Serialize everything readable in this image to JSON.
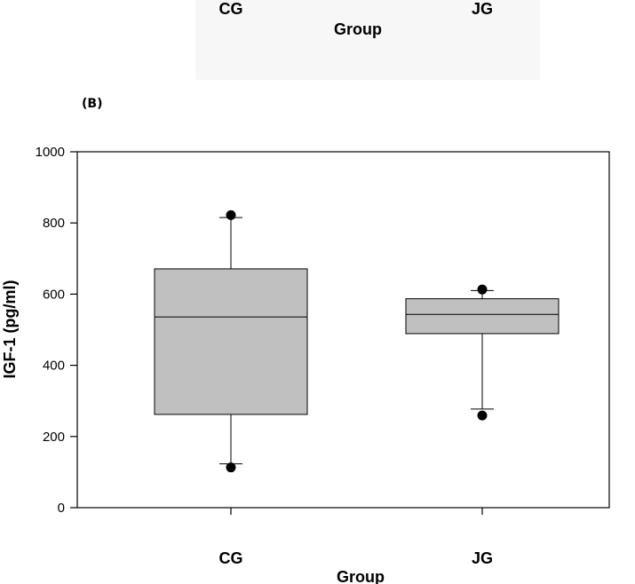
{
  "top_fragment": {
    "categories": [
      "CG",
      "JG"
    ],
    "xlabel": "Group"
  },
  "panel_label": "(B)",
  "chart_data": {
    "type": "box",
    "ylabel": "IGF-1 (pg/ml)",
    "xlabel": "Group",
    "ylim": [
      0,
      1000
    ],
    "yticks": [
      0,
      200,
      400,
      600,
      800,
      1000
    ],
    "grid": false,
    "categories": [
      "CG",
      "JG"
    ],
    "boxes": [
      {
        "category": "CG",
        "whisker_low": 123,
        "q1": 262,
        "median": 536,
        "q3": 671,
        "whisker_high": 815,
        "outliers": [
          113,
          822
        ]
      },
      {
        "category": "JG",
        "whisker_low": 277,
        "q1": 489,
        "median": 543,
        "q3": 587,
        "whisker_high": 610,
        "outliers": [
          259,
          613
        ]
      }
    ],
    "box_fill": "#c0c0c0"
  }
}
